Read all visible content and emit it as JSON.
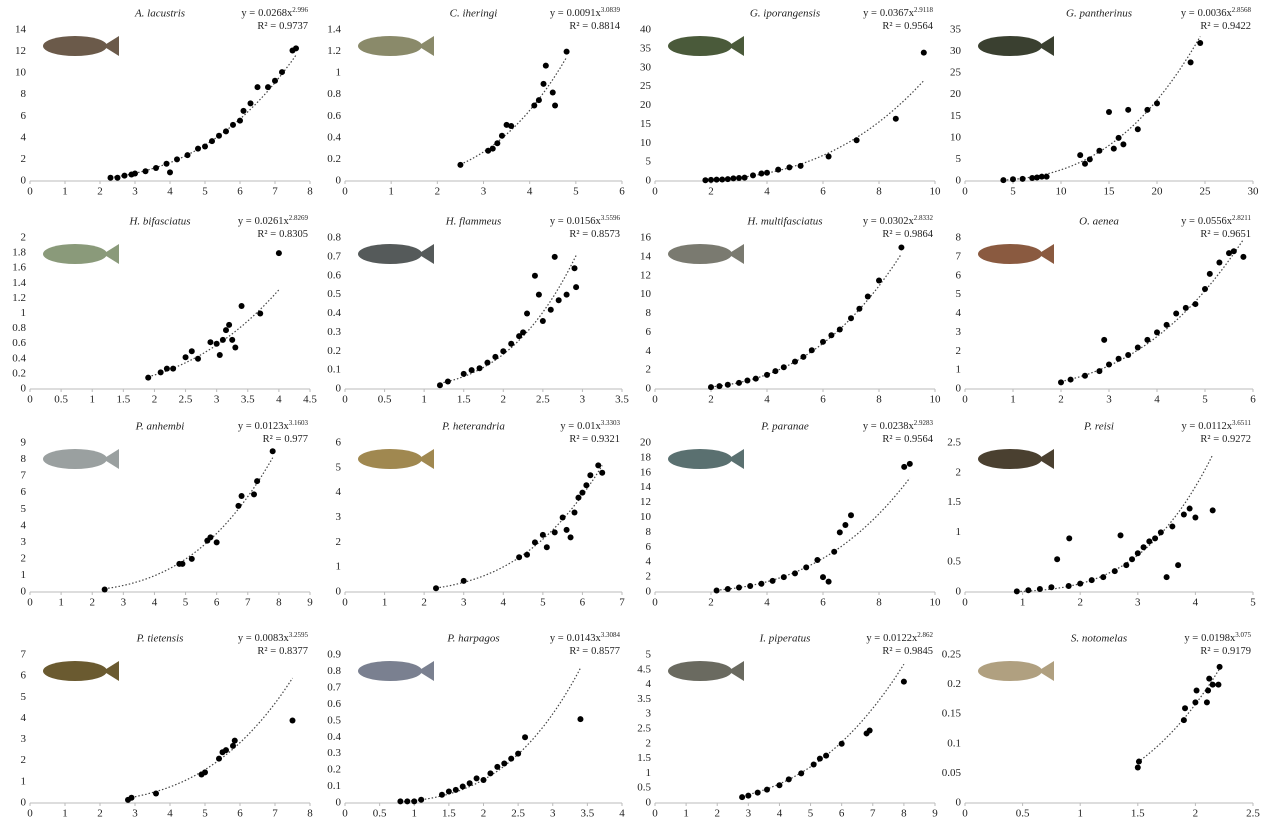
{
  "chart_data": [
    {
      "type": "scatter",
      "title": "A. lacustris",
      "eq_y": "y =",
      "coef": 0.0268,
      "eq_x": "x",
      "exponent": 2.996,
      "r2_label": "R² =",
      "r2": 0.9737,
      "color": "#000000",
      "xlim": [
        0,
        8
      ],
      "xticks": [
        0,
        1,
        2,
        3,
        4,
        5,
        6,
        7,
        8
      ],
      "ylim": [
        0,
        14
      ],
      "yticks": [
        0,
        2,
        4,
        6,
        8,
        10,
        12,
        14
      ],
      "x": [
        2.3,
        2.5,
        2.7,
        2.9,
        3.0,
        3.3,
        3.6,
        3.9,
        4.0,
        4.2,
        4.5,
        4.8,
        5.0,
        5.2,
        5.4,
        5.6,
        5.8,
        6.0,
        6.1,
        6.3,
        6.5,
        6.8,
        7.0,
        7.2,
        7.5,
        7.6
      ],
      "y": [
        0.3,
        0.3,
        0.5,
        0.6,
        0.7,
        0.9,
        1.2,
        1.6,
        0.8,
        2.0,
        2.4,
        3.0,
        3.2,
        3.7,
        4.2,
        4.6,
        5.2,
        5.6,
        6.5,
        7.2,
        8.7,
        8.7,
        9.3,
        10.1,
        12.1,
        12.3
      ]
    },
    {
      "type": "scatter",
      "title": "C. iheringi",
      "eq_y": "y =",
      "coef": 0.0091,
      "eq_x": "x",
      "exponent": 3.0839,
      "r2_label": "R² =",
      "r2": 0.8814,
      "color": "#000000",
      "xlim": [
        0,
        6
      ],
      "xticks": [
        0,
        1,
        2,
        3,
        4,
        5,
        6
      ],
      "ylim": [
        0,
        1.4
      ],
      "yticks": [
        0,
        0.2,
        0.4,
        0.6,
        0.8,
        1,
        1.2,
        1.4
      ],
      "x": [
        2.5,
        3.1,
        3.2,
        3.3,
        3.4,
        3.5,
        3.6,
        4.1,
        4.2,
        4.3,
        4.35,
        4.5,
        4.55,
        4.8
      ],
      "y": [
        0.15,
        0.28,
        0.3,
        0.35,
        0.42,
        0.52,
        0.51,
        0.7,
        0.75,
        0.9,
        1.07,
        0.82,
        0.7,
        1.2
      ]
    },
    {
      "type": "scatter",
      "title": "G. iporangensis",
      "eq_y": "y =",
      "coef": 0.0367,
      "eq_x": "x",
      "exponent": 2.9118,
      "r2_label": "R² =",
      "r2": 0.9564,
      "color": "#000000",
      "xlim": [
        0,
        10
      ],
      "xticks": [
        0,
        2,
        4,
        6,
        8,
        10
      ],
      "ylim": [
        0,
        40
      ],
      "yticks": [
        0,
        5,
        10,
        15,
        20,
        25,
        30,
        35,
        40
      ],
      "x": [
        1.8,
        2.0,
        2.2,
        2.4,
        2.6,
        2.8,
        3.0,
        3.2,
        3.5,
        3.8,
        4.0,
        4.4,
        4.8,
        5.2,
        6.2,
        7.2,
        8.6,
        9.6
      ],
      "y": [
        0.2,
        0.3,
        0.35,
        0.4,
        0.5,
        0.7,
        0.8,
        0.9,
        1.5,
        2,
        2.2,
        3,
        3.6,
        4,
        6.5,
        10.8,
        16.5,
        34
      ]
    },
    {
      "type": "scatter",
      "title": "G. pantherinus",
      "eq_y": "y =",
      "coef": 0.0036,
      "eq_x": "x",
      "exponent": 2.8568,
      "r2_label": "R² =",
      "r2": 0.9422,
      "color": "#000000",
      "xlim": [
        0,
        30
      ],
      "xticks": [
        0,
        5,
        10,
        15,
        20,
        25,
        30
      ],
      "ylim": [
        0,
        35
      ],
      "yticks": [
        0,
        5,
        10,
        15,
        20,
        25,
        30,
        35
      ],
      "x": [
        4,
        5,
        6,
        7,
        7.5,
        8,
        8.5,
        12,
        12.5,
        13,
        14,
        15,
        15.5,
        16,
        16.5,
        17,
        18,
        19,
        20,
        23.5,
        24.5
      ],
      "y": [
        0.2,
        0.4,
        0.5,
        0.7,
        0.8,
        1,
        1,
        6,
        4,
        5,
        7,
        16,
        7.5,
        10,
        8.5,
        16.5,
        12,
        16.5,
        18,
        27.5,
        32
      ]
    },
    {
      "type": "scatter",
      "title": "H. bifasciatus",
      "eq_y": "y =",
      "coef": 0.0261,
      "eq_x": "x",
      "exponent": 2.8269,
      "r2_label": "R² =",
      "r2": 0.8305,
      "color": "#000000",
      "xlim": [
        0,
        4.5
      ],
      "xticks": [
        0,
        0.5,
        1,
        1.5,
        2,
        2.5,
        3,
        3.5,
        4,
        4.5
      ],
      "ylim": [
        0,
        2
      ],
      "yticks": [
        0,
        0.2,
        0.4,
        0.6,
        0.8,
        1,
        1.2,
        1.4,
        1.6,
        1.8,
        2
      ],
      "x": [
        1.9,
        2.1,
        2.2,
        2.3,
        2.5,
        2.6,
        2.7,
        2.9,
        3.0,
        3.05,
        3.1,
        3.15,
        3.2,
        3.25,
        3.3,
        3.4,
        3.7,
        4.0
      ],
      "y": [
        0.15,
        0.22,
        0.27,
        0.27,
        0.42,
        0.5,
        0.4,
        0.62,
        0.6,
        0.45,
        0.65,
        0.78,
        0.85,
        0.65,
        0.55,
        1.1,
        1.0,
        1.8
      ]
    },
    {
      "type": "scatter",
      "title": "H. flammeus",
      "eq_y": "y =",
      "coef": 0.0156,
      "eq_x": "x",
      "exponent": 3.5596,
      "r2_label": "R² =",
      "r2": 0.8573,
      "color": "#000000",
      "xlim": [
        0,
        3.5
      ],
      "xticks": [
        0,
        0.5,
        1,
        1.5,
        2,
        2.5,
        3,
        3.5
      ],
      "ylim": [
        0,
        0.8
      ],
      "yticks": [
        0,
        0.1,
        0.2,
        0.3,
        0.4,
        0.5,
        0.6,
        0.7,
        0.8
      ],
      "x": [
        1.2,
        1.3,
        1.5,
        1.6,
        1.7,
        1.8,
        1.9,
        2.0,
        2.1,
        2.2,
        2.25,
        2.3,
        2.4,
        2.45,
        2.5,
        2.6,
        2.65,
        2.7,
        2.8,
        2.9,
        2.92
      ],
      "y": [
        0.02,
        0.04,
        0.08,
        0.1,
        0.11,
        0.14,
        0.17,
        0.2,
        0.24,
        0.28,
        0.3,
        0.4,
        0.6,
        0.5,
        0.36,
        0.42,
        0.7,
        0.47,
        0.5,
        0.64,
        0.54
      ]
    },
    {
      "type": "scatter",
      "title": "H. multifasciatus",
      "eq_y": "y =",
      "coef": 0.0302,
      "eq_x": "x",
      "exponent": 2.8332,
      "r2_label": "R² =",
      "r2": 0.9864,
      "color": "#000000",
      "xlim": [
        0,
        10
      ],
      "xticks": [
        0,
        2,
        4,
        6,
        8,
        10
      ],
      "ylim": [
        0,
        16
      ],
      "yticks": [
        0,
        2,
        4,
        6,
        8,
        10,
        12,
        14,
        16
      ],
      "x": [
        2,
        2.3,
        2.6,
        3,
        3.3,
        3.6,
        4,
        4.3,
        4.6,
        5,
        5.3,
        5.6,
        6,
        6.3,
        6.6,
        7,
        7.3,
        7.6,
        8,
        8.8
      ],
      "y": [
        0.2,
        0.3,
        0.45,
        0.65,
        0.9,
        1.1,
        1.5,
        1.9,
        2.3,
        2.9,
        3.4,
        4.1,
        5.0,
        5.7,
        6.3,
        7.5,
        8.5,
        9.8,
        11.5,
        15
      ]
    },
    {
      "type": "scatter",
      "title": "O. aenea",
      "eq_y": "y =",
      "coef": 0.0556,
      "eq_x": "x",
      "exponent": 2.8211,
      "r2_label": "R² =",
      "r2": 0.9651,
      "color": "#000000",
      "xlim": [
        0,
        6
      ],
      "xticks": [
        0,
        1,
        2,
        3,
        4,
        5,
        6
      ],
      "ylim": [
        0,
        8
      ],
      "yticks": [
        0,
        1,
        2,
        3,
        4,
        5,
        6,
        7,
        8
      ],
      "x": [
        2,
        2.2,
        2.5,
        2.8,
        2.9,
        3,
        3.2,
        3.4,
        3.6,
        3.8,
        4,
        4.2,
        4.4,
        4.6,
        4.8,
        5,
        5.1,
        5.3,
        5.5,
        5.6,
        5.8
      ],
      "y": [
        0.35,
        0.5,
        0.7,
        0.95,
        2.6,
        1.3,
        1.6,
        1.8,
        2.2,
        2.6,
        3.0,
        3.4,
        4.0,
        4.3,
        4.5,
        5.3,
        6.1,
        6.7,
        7.2,
        7.3,
        7.0
      ]
    },
    {
      "type": "scatter",
      "title": "P. anhembi",
      "eq_y": "y =",
      "coef": 0.0123,
      "eq_x": "x",
      "exponent": 3.1603,
      "r2_label": "R² =",
      "r2": 0.977,
      "color": "#000000",
      "xlim": [
        0,
        9
      ],
      "xticks": [
        0,
        1,
        2,
        3,
        4,
        5,
        6,
        7,
        8,
        9
      ],
      "ylim": [
        0,
        9
      ],
      "yticks": [
        0,
        1,
        2,
        3,
        4,
        5,
        6,
        7,
        8,
        9
      ],
      "x": [
        2.4,
        4.8,
        4.9,
        5.2,
        5.7,
        5.8,
        6.0,
        6.7,
        6.8,
        7.2,
        7.3,
        7.8
      ],
      "y": [
        0.15,
        1.7,
        1.7,
        2.0,
        3.1,
        3.3,
        3.0,
        5.2,
        5.8,
        5.9,
        6.7,
        8.5
      ]
    },
    {
      "type": "scatter",
      "title": "P. heterandria",
      "eq_y": "y =",
      "coef": 0.01,
      "eq_x": "x",
      "exponent": 3.3303,
      "r2_label": "R² =",
      "r2": 0.9321,
      "color": "#000000",
      "xlim": [
        0,
        7
      ],
      "xticks": [
        0,
        1,
        2,
        3,
        4,
        5,
        6,
        7
      ],
      "ylim": [
        0,
        6
      ],
      "yticks": [
        0,
        1,
        2,
        3,
        4,
        5,
        6
      ],
      "x": [
        2.3,
        3.0,
        4.4,
        4.6,
        4.8,
        5.0,
        5.1,
        5.3,
        5.5,
        5.6,
        5.7,
        5.8,
        5.9,
        6.0,
        6.1,
        6.2,
        6.4,
        6.5
      ],
      "y": [
        0.15,
        0.45,
        1.4,
        1.5,
        2.0,
        2.3,
        1.8,
        2.4,
        3.0,
        2.5,
        2.2,
        3.2,
        3.8,
        4.0,
        4.3,
        4.7,
        5.1,
        4.8
      ]
    },
    {
      "type": "scatter",
      "title": "P. paranae",
      "eq_y": "y =",
      "coef": 0.0238,
      "eq_x": "x",
      "exponent": 2.9283,
      "r2_label": "R² =",
      "r2": 0.9564,
      "color": "#000000",
      "xlim": [
        0,
        10
      ],
      "xticks": [
        0,
        2,
        4,
        6,
        8,
        10
      ],
      "ylim": [
        0,
        20
      ],
      "yticks": [
        0,
        2,
        4,
        6,
        8,
        10,
        12,
        14,
        16,
        18,
        20
      ],
      "x": [
        2.2,
        2.6,
        3,
        3.4,
        3.8,
        4.2,
        4.6,
        5,
        5.4,
        5.8,
        6.0,
        6.2,
        6.4,
        6.6,
        6.8,
        7.0,
        8.9,
        9.1
      ],
      "y": [
        0.2,
        0.4,
        0.6,
        0.8,
        1.1,
        1.5,
        2.0,
        2.5,
        3.3,
        4.3,
        2,
        1.4,
        5.4,
        8.0,
        9.0,
        10.3,
        16.8,
        17.2
      ]
    },
    {
      "type": "scatter",
      "title": "P. reisi",
      "eq_y": "y =",
      "coef": 0.0112,
      "eq_x": "x",
      "exponent": 3.6511,
      "r2_label": "R² =",
      "r2": 0.9272,
      "color": "#000000",
      "xlim": [
        0,
        5
      ],
      "xticks": [
        0,
        1,
        2,
        3,
        4,
        5
      ],
      "ylim": [
        0,
        2.5
      ],
      "yticks": [
        0,
        0.5,
        1,
        1.5,
        2,
        2.5
      ],
      "x": [
        0.9,
        1.1,
        1.3,
        1.5,
        1.6,
        1.8,
        1.81,
        2.0,
        2.2,
        2.4,
        2.6,
        2.7,
        2.8,
        2.9,
        3.0,
        3.1,
        3.2,
        3.3,
        3.4,
        3.5,
        3.6,
        3.7,
        3.8,
        3.9,
        4.0,
        4.3
      ],
      "y": [
        0.01,
        0.03,
        0.05,
        0.08,
        0.55,
        0.1,
        0.9,
        0.14,
        0.2,
        0.25,
        0.35,
        0.95,
        0.45,
        0.55,
        0.65,
        0.75,
        0.85,
        0.9,
        1.0,
        0.25,
        1.1,
        0.45,
        1.3,
        1.4,
        1.25,
        1.37
      ]
    },
    {
      "type": "scatter",
      "title": "P. tietensis",
      "eq_y": "y =",
      "coef": 0.0083,
      "eq_x": "x",
      "exponent": 3.2595,
      "r2_label": "R² =",
      "r2": 0.8377,
      "color": "#000000",
      "xlim": [
        0,
        8
      ],
      "xticks": [
        0,
        1,
        2,
        3,
        4,
        5,
        6,
        7,
        8
      ],
      "ylim": [
        0,
        7
      ],
      "yticks": [
        0,
        1,
        2,
        3,
        4,
        5,
        6,
        7
      ],
      "x": [
        2.8,
        2.9,
        3.6,
        4.9,
        5.0,
        5.4,
        5.5,
        5.6,
        5.8,
        5.85,
        7.5
      ],
      "y": [
        0.15,
        0.25,
        0.45,
        1.35,
        1.45,
        2.1,
        2.4,
        2.5,
        2.7,
        2.95,
        3.9
      ]
    },
    {
      "type": "scatter",
      "title": "P. harpagos",
      "eq_y": "y =",
      "coef": 0.0143,
      "eq_x": "x",
      "exponent": 3.3084,
      "r2_label": "R² =",
      "r2": 0.8577,
      "color": "#000000",
      "xlim": [
        0,
        4
      ],
      "xticks": [
        0,
        0.5,
        1,
        1.5,
        2,
        2.5,
        3,
        3.5,
        4
      ],
      "ylim": [
        0,
        0.9
      ],
      "yticks": [
        0,
        0.1,
        0.2,
        0.3,
        0.4,
        0.5,
        0.6,
        0.7,
        0.8,
        0.9
      ],
      "x": [
        0.8,
        0.9,
        1.0,
        1.1,
        1.4,
        1.5,
        1.6,
        1.7,
        1.8,
        1.9,
        2.0,
        2.1,
        2.2,
        2.3,
        2.4,
        2.5,
        2.6,
        3.4
      ],
      "y": [
        0.01,
        0.01,
        0.01,
        0.02,
        0.05,
        0.07,
        0.08,
        0.1,
        0.12,
        0.15,
        0.14,
        0.18,
        0.22,
        0.24,
        0.27,
        0.3,
        0.4,
        0.51
      ]
    },
    {
      "type": "scatter",
      "title": "I. piperatus",
      "eq_y": "y =",
      "coef": 0.0122,
      "eq_x": "x",
      "exponent": 2.862,
      "r2_label": "R² =",
      "r2": 0.9845,
      "color": "#000000",
      "xlim": [
        0,
        9
      ],
      "xticks": [
        0,
        1,
        2,
        3,
        4,
        5,
        6,
        7,
        8,
        9
      ],
      "ylim": [
        0,
        5
      ],
      "yticks": [
        0,
        0.5,
        1,
        1.5,
        2,
        2.5,
        3,
        3.5,
        4,
        4.5,
        5
      ],
      "x": [
        2.8,
        3,
        3.3,
        3.6,
        4,
        4.3,
        4.7,
        5.1,
        5.3,
        5.5,
        6,
        6.8,
        6.9,
        8
      ],
      "y": [
        0.2,
        0.25,
        0.35,
        0.45,
        0.6,
        0.8,
        1.0,
        1.3,
        1.5,
        1.6,
        2.0,
        2.35,
        2.45,
        4.1
      ]
    },
    {
      "type": "scatter",
      "title": "S. notomelas",
      "eq_y": "y =",
      "coef": 0.0198,
      "eq_x": "x",
      "exponent": 3.075,
      "r2_label": "R² =",
      "r2": 0.9179,
      "color": "#000000",
      "xlim": [
        0,
        2.5
      ],
      "xticks": [
        0,
        0.5,
        1,
        1.5,
        2,
        2.5
      ],
      "ylim": [
        0,
        0.25
      ],
      "yticks": [
        0,
        0.05,
        0.1,
        0.15,
        0.2,
        0.25
      ],
      "x": [
        1.5,
        1.51,
        1.9,
        1.91,
        2.0,
        2.01,
        2.1,
        2.11,
        2.12,
        2.15,
        2.2,
        2.21
      ],
      "y": [
        0.06,
        0.07,
        0.14,
        0.16,
        0.17,
        0.19,
        0.17,
        0.19,
        0.21,
        0.2,
        0.2,
        0.23
      ]
    }
  ]
}
